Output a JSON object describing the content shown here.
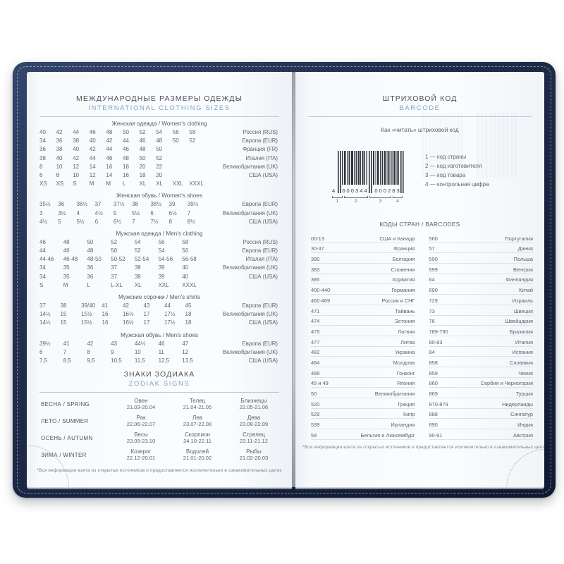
{
  "theme": {
    "accent_blue": "#7da4c8",
    "cover_navy": "#1b2842",
    "page_bg": "#f9fafc",
    "rule_blue": "#b7c9db"
  },
  "left_page": {
    "title": "МЕЖДУНАРОДНЫЕ РАЗМЕРЫ ОДЕЖДЫ",
    "subtitle": "INTERNATIONAL CLOTHING SIZES",
    "sections": [
      {
        "heading": "Женская одежда / Women's clothing",
        "columns": 10,
        "rows": [
          {
            "values": [
              "40",
              "42",
              "44",
              "46",
              "48",
              "50",
              "52",
              "54",
              "56",
              "58"
            ],
            "label": "Россия (RUS)"
          },
          {
            "values": [
              "34",
              "36",
              "38",
              "40",
              "42",
              "44",
              "46",
              "48",
              "50",
              "52"
            ],
            "label": "Европа (EUR)"
          },
          {
            "values": [
              "36",
              "38",
              "40",
              "42",
              "44",
              "46",
              "48",
              "50"
            ],
            "label": "Франция (FR)"
          },
          {
            "values": [
              "38",
              "40",
              "42",
              "44",
              "46",
              "48",
              "50",
              "52"
            ],
            "label": "Италия (ITA)"
          },
          {
            "values": [
              "8",
              "10",
              "12",
              "14",
              "16",
              "18",
              "20",
              "22"
            ],
            "label": "Великобритания (UK)"
          },
          {
            "values": [
              "6",
              "8",
              "10",
              "12",
              "14",
              "16",
              "18",
              "20"
            ],
            "label": "США (USA)"
          },
          {
            "values": [
              "XS",
              "XS",
              "S",
              "M",
              "M",
              "L",
              "XL",
              "XL",
              "XXL",
              "XXXL"
            ],
            "label": ""
          }
        ]
      },
      {
        "heading": "Женская обувь / Women's shoes",
        "columns": 9,
        "rows": [
          {
            "values": [
              "35½",
              "36",
              "36½",
              "37",
              "37½",
              "38",
              "38½",
              "39",
              "39½"
            ],
            "label": "Европа (EUR)"
          },
          {
            "values": [
              "3",
              "3½",
              "4",
              "4½",
              "5",
              "5½",
              "6",
              "6½",
              "7"
            ],
            "label": "Великобритания (UK)"
          },
          {
            "values": [
              "4½",
              "5",
              "5½",
              "6",
              "6½",
              "7",
              "7½",
              "8",
              "8½"
            ],
            "label": "США (USA)"
          }
        ]
      },
      {
        "heading": "Мужская одежда / Men's clothing",
        "columns": 7,
        "rows": [
          {
            "values": [
              "46",
              "48",
              "50",
              "52",
              "54",
              "56",
              "58"
            ],
            "label": "Россия (RUS)"
          },
          {
            "values": [
              "44",
              "46",
              "48",
              "50",
              "52",
              "54",
              "56"
            ],
            "label": "Европа (EUR)"
          },
          {
            "values": [
              "44-46",
              "46-48",
              "48-50",
              "50-52",
              "52-54",
              "54-56",
              "56-58"
            ],
            "label": "Италия (ITA)"
          },
          {
            "values": [
              "34",
              "35",
              "36",
              "37",
              "38",
              "39",
              "40"
            ],
            "label": "Великобритания (UK)"
          },
          {
            "values": [
              "34",
              "35",
              "36",
              "37",
              "38",
              "39",
              "40"
            ],
            "label": "США (USA)"
          },
          {
            "values": [
              "S",
              "M",
              "L",
              "L-XL",
              "XL",
              "XXL",
              "XXXL"
            ],
            "label": ""
          }
        ]
      },
      {
        "heading": "Мужские сорочки / Men's shirts",
        "columns": 8,
        "rows": [
          {
            "values": [
              "37",
              "38",
              "39/40",
              "41",
              "42",
              "43",
              "44",
              "45"
            ],
            "label": "Европа (EUR)"
          },
          {
            "values": [
              "14½",
              "15",
              "15½",
              "16",
              "16½",
              "17",
              "17½",
              "18"
            ],
            "label": "Великобритания (UK)"
          },
          {
            "values": [
              "14½",
              "15",
              "15½",
              "16",
              "16½",
              "17",
              "17½",
              "18"
            ],
            "label": "США (USA)"
          }
        ]
      },
      {
        "heading": "Мужская обувь / Men's shoes",
        "columns": 7,
        "rows": [
          {
            "values": [
              "39½",
              "41",
              "42",
              "43",
              "44½",
              "46",
              "47"
            ],
            "label": "Европа (EUR)"
          },
          {
            "values": [
              "6",
              "7",
              "8",
              "9",
              "10",
              "11",
              "12"
            ],
            "label": "Великобритания (UK)"
          },
          {
            "values": [
              "7,5",
              "8,5",
              "9,5",
              "10,5",
              "11,5",
              "12,5",
              "13,5"
            ],
            "label": "США (USA)"
          }
        ]
      }
    ],
    "zodiac": {
      "title": "ЗНАКИ ЗОДИАКА",
      "subtitle": "ZODIAK SIGNS",
      "rows": [
        {
          "season": "ВЕСНА / SPRING",
          "signs": [
            {
              "name": "Овен",
              "dates": "21.03-20.04"
            },
            {
              "name": "Телец",
              "dates": "21.04-21.05"
            },
            {
              "name": "Близнецы",
              "dates": "22.05-21.06"
            }
          ]
        },
        {
          "season": "ЛЕТО / SUMMER",
          "signs": [
            {
              "name": "Рак",
              "dates": "22.06-22.07"
            },
            {
              "name": "Лев",
              "dates": "23.07-22.08"
            },
            {
              "name": "Дева",
              "dates": "23.08-22.09"
            }
          ]
        },
        {
          "season": "ОСЕНЬ / AUTUMN",
          "signs": [
            {
              "name": "Весы",
              "dates": "23.09-23.10"
            },
            {
              "name": "Скорпион",
              "dates": "24.10-22.11"
            },
            {
              "name": "Стрелец",
              "dates": "23.11-21.12"
            }
          ]
        },
        {
          "season": "ЗИМА / WINTER",
          "signs": [
            {
              "name": "Козерог",
              "dates": "22.12-20.01"
            },
            {
              "name": "Водолей",
              "dates": "21.01-20.02"
            },
            {
              "name": "Рыбы",
              "dates": "21.02-20.03"
            }
          ]
        }
      ]
    },
    "footnote": "*Вся информация взята из открытых источников и предоставляется исключительно в ознакомительных целях"
  },
  "right_page": {
    "title": "ШТРИХОВОЙ КОД",
    "subtitle": "BARCODE",
    "how_to": "Как «читать» штриховой код",
    "barcode": {
      "lead_digit": "4",
      "group1": "600344",
      "group2": "000283",
      "group_markers": [
        "1",
        "2",
        "3",
        "4"
      ],
      "legend": [
        "1 — код страны",
        "2 — код изготовителя",
        "3 — код товара",
        "4 — контрольная цифра"
      ]
    },
    "codes_title": "КОДЫ СТРАН / BARCODES",
    "codes": [
      [
        "00-13",
        "США и Канада",
        "560",
        "Португалия"
      ],
      [
        "30-37",
        "Франция",
        "57",
        "Дания"
      ],
      [
        "380",
        "Болгария",
        "590",
        "Польша"
      ],
      [
        "383",
        "Словения",
        "599",
        "Венгрия"
      ],
      [
        "385",
        "Хорватия",
        "64",
        "Финляндия"
      ],
      [
        "400-440",
        "Германия",
        "690",
        "Китай"
      ],
      [
        "460-469",
        "Россия и СНГ",
        "729",
        "Израиль"
      ],
      [
        "471",
        "Тайвань",
        "73",
        "Швеция"
      ],
      [
        "474",
        "Эстония",
        "76",
        "Швейцария"
      ],
      [
        "475",
        "Латвия",
        "789-790",
        "Бразилия"
      ],
      [
        "477",
        "Литва",
        "80-83",
        "Италия"
      ],
      [
        "482",
        "Украина",
        "84",
        "Испания"
      ],
      [
        "484",
        "Молдова",
        "858",
        "Словакия"
      ],
      [
        "489",
        "Гонконг",
        "859",
        "Чехия"
      ],
      [
        "45 и 49",
        "Япония",
        "860",
        "Сербия и Черногория"
      ],
      [
        "50",
        "Великобритания",
        "869",
        "Турция"
      ],
      [
        "520",
        "Греция",
        "870-879",
        "Нидерланды"
      ],
      [
        "529",
        "Кипр",
        "888",
        "Сингапур"
      ],
      [
        "539",
        "Ирландия",
        "890",
        "Индия"
      ],
      [
        "54",
        "Бельгия и Люксембург",
        "90-91",
        "Австрия"
      ]
    ],
    "footnote": "*Вся информация взята из открытых источников и предоставляется исключительно в ознакомительных целях"
  }
}
